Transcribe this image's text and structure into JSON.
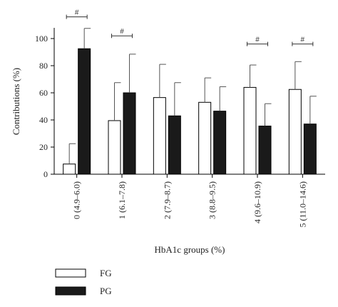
{
  "chart_data": {
    "type": "bar",
    "title": "",
    "xlabel": "HbA1c groups (%)",
    "ylabel": "Contributions (%)",
    "ylim": [
      0,
      110
    ],
    "yticks": [
      0,
      20,
      40,
      60,
      80,
      100
    ],
    "grid": false,
    "legend_position": "bottom-left",
    "categories": [
      "0 (4.9–6.0)",
      "1 (6.1–7.8)",
      "2 (7.9–8.7)",
      "3 (8.8–9.5)",
      "4 (9.6–10.9)",
      "5 (11.0–14.6)"
    ],
    "series": [
      {
        "name": "FG",
        "color": "#ffffff",
        "values": [
          7.5,
          39.5,
          56.5,
          53,
          64,
          62.5
        ],
        "error": [
          15,
          28,
          24.5,
          18,
          16.5,
          20.5
        ]
      },
      {
        "name": "PG",
        "color": "#1a1a1a",
        "values": [
          92.5,
          60,
          43,
          46.5,
          35.5,
          37
        ],
        "error": [
          15,
          28.5,
          24.5,
          18,
          16.5,
          20.5
        ]
      }
    ],
    "annotations": [
      {
        "category_index": 0,
        "label": "#",
        "y": 116
      },
      {
        "category_index": 1,
        "label": "#",
        "y": 102
      },
      {
        "category_index": 4,
        "label": "#",
        "y": 96
      },
      {
        "category_index": 5,
        "label": "#",
        "y": 96
      }
    ]
  }
}
